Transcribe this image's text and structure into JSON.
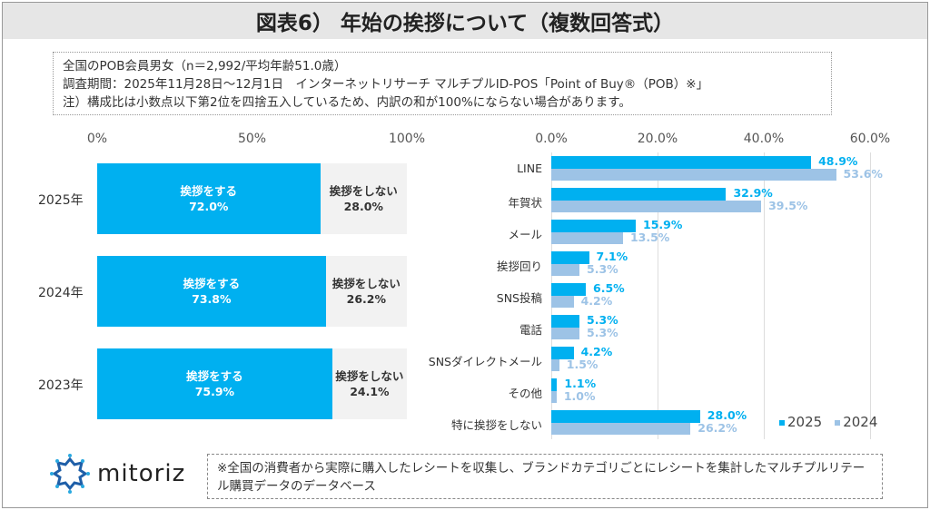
{
  "title": "図表6） 年始の挨拶について（複数回答式）",
  "notes": [
    "全国のPOB会員男女（n＝2,992/平均年齢51.0歳）",
    "調査期間：2025年11月28日～12月1日　インターネットリサーチ マルチプルID-POS「Point of Buy®（POB）※」",
    "注）構成比は小数点以下第2位を四捨五入しているため、内訳の和が100%にならない場合があります。"
  ],
  "colors": {
    "primary": "#00b0f0",
    "secondary": "#9dc3e6",
    "remainder": "#f2f2f2"
  },
  "chart_data": [
    {
      "type": "bar",
      "orientation": "horizontal",
      "stacked": true,
      "categories": [
        "2025年",
        "2024年",
        "2023年"
      ],
      "xticks": [
        "0%",
        "50%",
        "100%"
      ],
      "xlim": [
        0,
        100
      ],
      "series": [
        {
          "name": "挨拶をする",
          "values": [
            72.0,
            73.8,
            75.9
          ],
          "labels": [
            "72.0%",
            "73.8%",
            "75.9%"
          ]
        },
        {
          "name": "挨拶をしない",
          "values": [
            28.0,
            26.2,
            24.1
          ],
          "labels": [
            "28.0%",
            "26.2%",
            "24.1%"
          ]
        }
      ]
    },
    {
      "type": "bar",
      "orientation": "horizontal",
      "grid": true,
      "categories": [
        "LINE",
        "年賀状",
        "メール",
        "挨拶回り",
        "SNS投稿",
        "電話",
        "SNSダイレクトメール",
        "その他",
        "特に挨拶をしない"
      ],
      "xticks": [
        "0.0%",
        "20.0%",
        "40.0%",
        "60.0%"
      ],
      "xlim": [
        0,
        60
      ],
      "legend": "bottom-right",
      "series": [
        {
          "name": "2025",
          "values": [
            48.9,
            32.9,
            15.9,
            7.1,
            6.5,
            5.3,
            4.2,
            1.1,
            28.0
          ],
          "labels": [
            "48.9%",
            "32.9%",
            "15.9%",
            "7.1%",
            "6.5%",
            "5.3%",
            "4.2%",
            "1.1%",
            "28.0%"
          ]
        },
        {
          "name": "2024",
          "values": [
            53.6,
            39.5,
            13.5,
            5.3,
            4.2,
            5.3,
            1.5,
            1.0,
            26.2
          ],
          "labels": [
            "53.6%",
            "39.5%",
            "13.5%",
            "5.3%",
            "4.2%",
            "5.3%",
            "1.5%",
            "1.0%",
            "26.2%"
          ]
        }
      ]
    }
  ],
  "logo": {
    "text": "mitoriz"
  },
  "footnote": "※全国の消費者から実際に購入したレシートを収集し、ブランドカテゴリごとにレシートを集計したマルチプルリテール購買データのデータベース"
}
